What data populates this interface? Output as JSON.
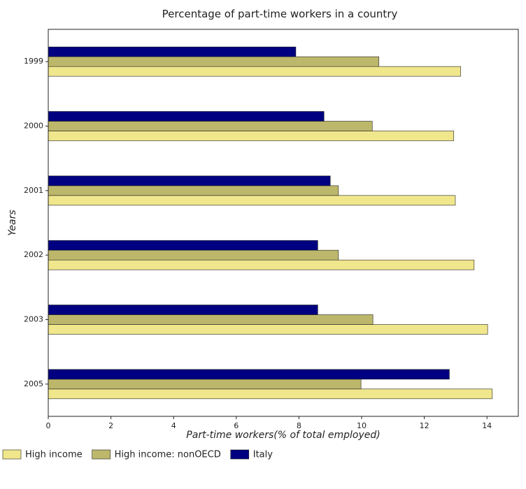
{
  "chart_data": {
    "type": "bar",
    "orientation": "horizontal",
    "title": "Percentage of part-time workers in a country",
    "xlabel": "Part-time workers(% of total employed)",
    "ylabel": "Years",
    "categories": [
      "1999",
      "2000",
      "2001",
      "2002",
      "2003",
      "2005"
    ],
    "xlim": [
      0,
      15
    ],
    "xticks": [
      "0",
      "2",
      "4",
      "6",
      "8",
      "10",
      "12",
      "14"
    ],
    "grid": false,
    "legend_position": "bottom-left",
    "series": [
      {
        "name": "High income",
        "color": "#f0e68c",
        "values": [
          13.16,
          12.94,
          12.99,
          13.59,
          14.02,
          14.17
        ]
      },
      {
        "name": "High income: nonOECD",
        "color": "#bdb76b",
        "values": [
          10.55,
          10.34,
          9.26,
          9.26,
          10.36,
          9.98
        ]
      },
      {
        "name": "Italy",
        "color": "#000080",
        "values": [
          7.9,
          8.8,
          9.0,
          8.6,
          8.6,
          12.8
        ]
      }
    ]
  }
}
